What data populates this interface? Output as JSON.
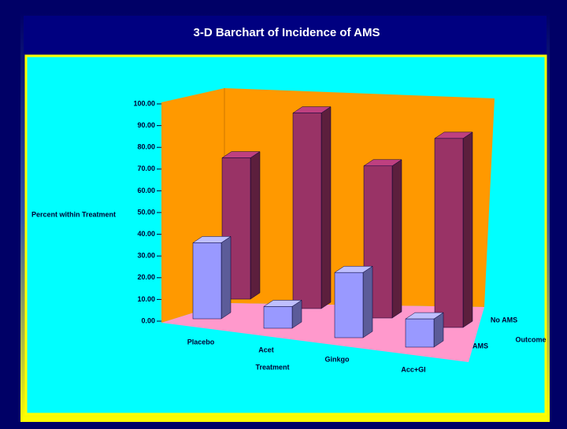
{
  "chart_data": {
    "type": "bar3d",
    "title": "3-D Barchart of Incidence of AMS",
    "y_label": "Percent within Treatment",
    "x_label": "Treatment",
    "legend_title": "Outcome",
    "categories": [
      "Placebo",
      "Acet",
      "Ginkgo",
      "Acc+GI"
    ],
    "series": [
      {
        "name": "No AMS",
        "color": "#993366",
        "values": [
          65,
          90,
          70,
          87
        ]
      },
      {
        "name": "AMS",
        "color": "#9999ff",
        "values": [
          35,
          10,
          30,
          13
        ]
      }
    ],
    "ylim": [
      0,
      100
    ],
    "yticks": [
      {
        "value": 0,
        "label": "0.00"
      },
      {
        "value": 10,
        "label": "10.00"
      },
      {
        "value": 20,
        "label": "20.00"
      },
      {
        "value": 30,
        "label": "30.00"
      },
      {
        "value": 40,
        "label": "40.00"
      },
      {
        "value": 50,
        "label": "50.00"
      },
      {
        "value": 60,
        "label": "60.00"
      },
      {
        "value": 70,
        "label": "70.00"
      },
      {
        "value": 80,
        "label": "80.00"
      },
      {
        "value": 90,
        "label": "90.00"
      },
      {
        "value": 100,
        "label": "100.00"
      }
    ]
  }
}
